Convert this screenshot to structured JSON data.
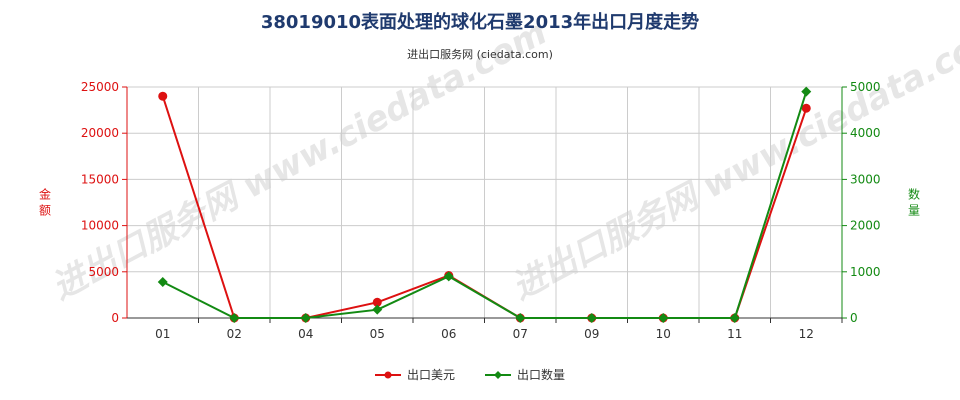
{
  "title": "38019010表面处理的球化石墨2013年出口月度走势",
  "subtitle": "进出口服务网 (ciedata.com)",
  "watermark": "进出口服务网 www.ciedata.com",
  "colors": {
    "left_axis": "#dd1111",
    "right_axis": "#138a13",
    "grid": "#cccccc",
    "axis": "#333333"
  },
  "chart_data": {
    "type": "line",
    "categories": [
      "01",
      "02",
      "04",
      "05",
      "06",
      "07",
      "09",
      "10",
      "11",
      "12"
    ],
    "y_left": {
      "label": "金额",
      "ylim": [
        0,
        25000
      ],
      "ticks": [
        0,
        5000,
        10000,
        15000,
        20000,
        25000
      ]
    },
    "y_right": {
      "label": "数量",
      "ylim": [
        0,
        5000
      ],
      "ticks": [
        0,
        1000,
        2000,
        3000,
        4000,
        5000
      ]
    },
    "grid": true,
    "legend_position": "bottom-center",
    "series": [
      {
        "name": "出口美元",
        "axis": "left",
        "color": "#dd1111",
        "marker": "circle",
        "values": [
          24000,
          0,
          0,
          1700,
          4600,
          0,
          0,
          0,
          0,
          22700
        ]
      },
      {
        "name": "出口数量",
        "axis": "right",
        "color": "#138a13",
        "marker": "diamond",
        "values": [
          780,
          0,
          0,
          180,
          900,
          0,
          0,
          0,
          0,
          4900
        ]
      }
    ]
  }
}
